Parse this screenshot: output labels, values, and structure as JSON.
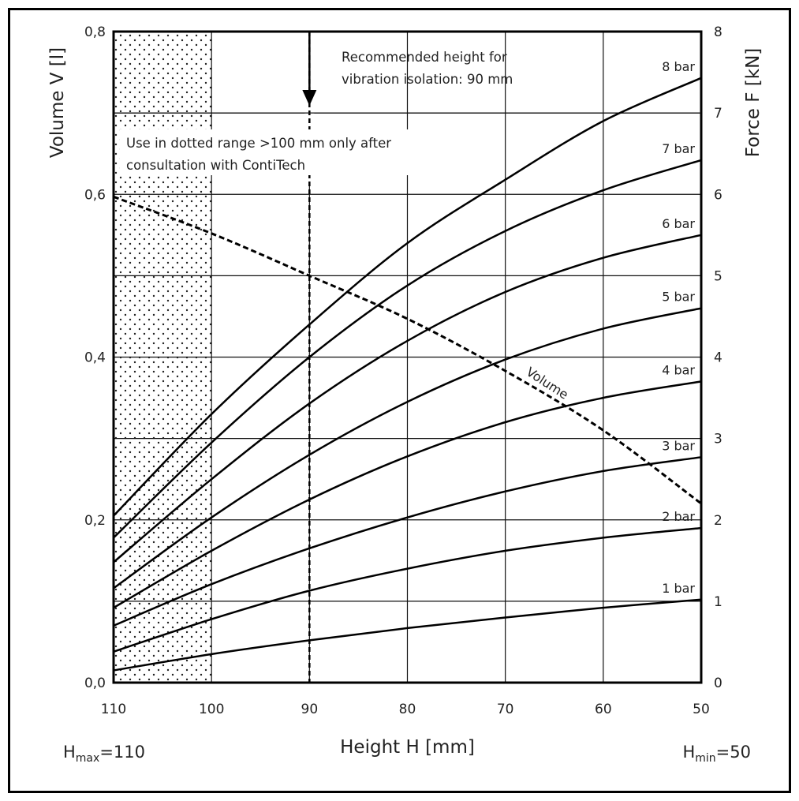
{
  "chart_data": {
    "type": "line",
    "xlabel": "Height H [mm]",
    "ylabel_left": "Volume V [l]",
    "ylabel_right": "Force F [kN]",
    "x_ticks": [
      "110",
      "100",
      "90",
      "80",
      "70",
      "60",
      "50"
    ],
    "x_range": [
      110,
      50
    ],
    "x_reversed": true,
    "y_left_ticks": [
      "0,0",
      "0,2",
      "0,4",
      "0,6",
      "0,8"
    ],
    "y_left_range": [
      0,
      0.8
    ],
    "y_right_ticks": [
      "0",
      "1",
      "2",
      "3",
      "4",
      "5",
      "6",
      "7",
      "8"
    ],
    "y_right_range": [
      0,
      8
    ],
    "grid": true,
    "x": [
      110,
      100,
      90,
      80,
      70,
      60,
      50
    ],
    "series": [
      {
        "name": "1 bar",
        "axis": "right",
        "values": [
          0.15,
          0.35,
          0.52,
          0.67,
          0.8,
          0.92,
          1.02
        ]
      },
      {
        "name": "2 bar",
        "axis": "right",
        "values": [
          0.38,
          0.78,
          1.13,
          1.4,
          1.62,
          1.78,
          1.9
        ]
      },
      {
        "name": "3 bar",
        "axis": "right",
        "values": [
          0.7,
          1.21,
          1.65,
          2.03,
          2.35,
          2.6,
          2.77
        ]
      },
      {
        "name": "4 bar",
        "axis": "right",
        "values": [
          0.92,
          1.62,
          2.25,
          2.78,
          3.2,
          3.5,
          3.7
        ]
      },
      {
        "name": "5 bar",
        "axis": "right",
        "values": [
          1.16,
          2.03,
          2.8,
          3.45,
          3.97,
          4.35,
          4.6
        ]
      },
      {
        "name": "6 bar",
        "axis": "right",
        "values": [
          1.48,
          2.5,
          3.43,
          4.2,
          4.8,
          5.22,
          5.5
        ]
      },
      {
        "name": "7 bar",
        "axis": "right",
        "values": [
          1.78,
          2.95,
          4.0,
          4.88,
          5.55,
          6.05,
          6.42
        ]
      },
      {
        "name": "8 bar",
        "axis": "right",
        "values": [
          2.05,
          3.3,
          4.4,
          5.4,
          6.18,
          6.9,
          7.43
        ]
      },
      {
        "name": "Volume",
        "axis": "left",
        "dashed": true,
        "values": [
          0.597,
          0.552,
          0.5,
          0.447,
          0.383,
          0.31,
          0.22
        ]
      }
    ],
    "dotted_range": [
      110,
      100
    ],
    "recommended_height": 90,
    "annotations": {
      "recommended": [
        "Recommended height for",
        "vibration isolation: 90 mm"
      ],
      "dotted": [
        "Use in dotted range >100 mm only after",
        "consultation with ContiTech"
      ],
      "volume_label": "Volume"
    },
    "hmax": {
      "base": "H",
      "sub": "max",
      "value": "=110"
    },
    "hmin": {
      "base": "H",
      "sub": "min",
      "value": "=50"
    }
  }
}
